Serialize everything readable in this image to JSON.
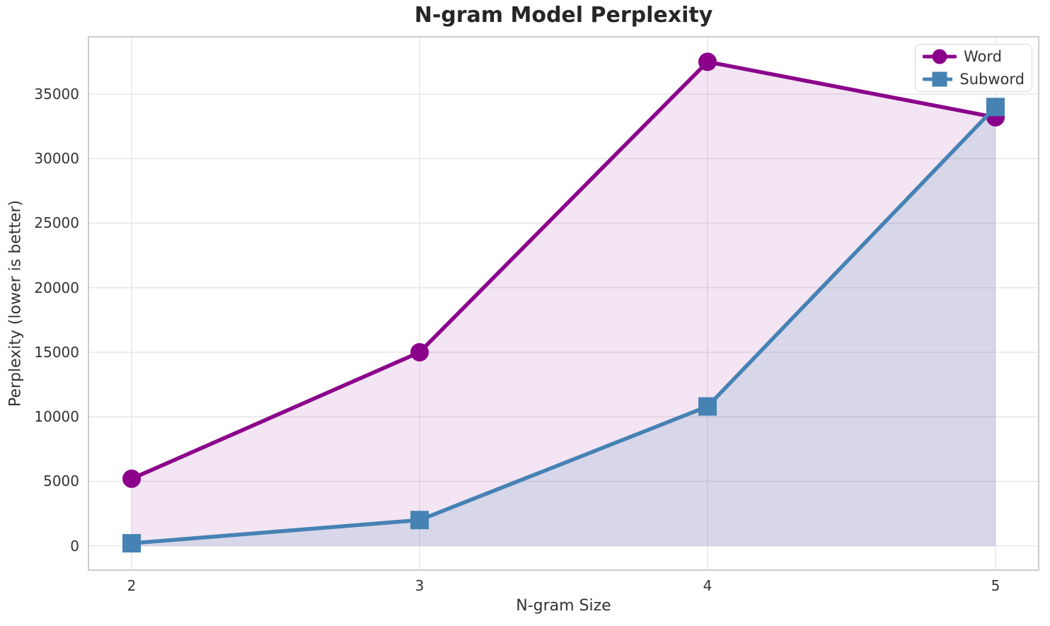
{
  "chart_data": {
    "type": "line",
    "title": "N-gram Model Perplexity",
    "xlabel": "N-gram Size",
    "ylabel": "Perplexity (lower is better)",
    "x": [
      2,
      3,
      4,
      5
    ],
    "xticks": [
      2,
      3,
      4,
      5
    ],
    "yticks": [
      0,
      5000,
      10000,
      15000,
      20000,
      25000,
      30000,
      35000
    ],
    "xlim": [
      1.85,
      5.15
    ],
    "ylim": [
      -1880,
      39440
    ],
    "grid": true,
    "area_fill": true,
    "legend": {
      "position": "upper right",
      "entries": [
        "Word",
        "Subword"
      ]
    },
    "series": [
      {
        "name": "Word",
        "marker": "circle",
        "color": "#8B008B",
        "fill_alpha": 0.1,
        "values": [
          5200,
          15000,
          37500,
          33200
        ]
      },
      {
        "name": "Subword",
        "marker": "square",
        "color": "#4682B4",
        "fill_alpha": 0.15,
        "values": [
          200,
          2000,
          10800,
          34000
        ]
      }
    ],
    "styling": {
      "background": "#ffffff",
      "grid_color": "#e7e7e7",
      "spine_color": "#cccccc",
      "text_color": "#333333",
      "title_color": "#262626",
      "line_width": 5.5,
      "marker_size": 26
    }
  }
}
